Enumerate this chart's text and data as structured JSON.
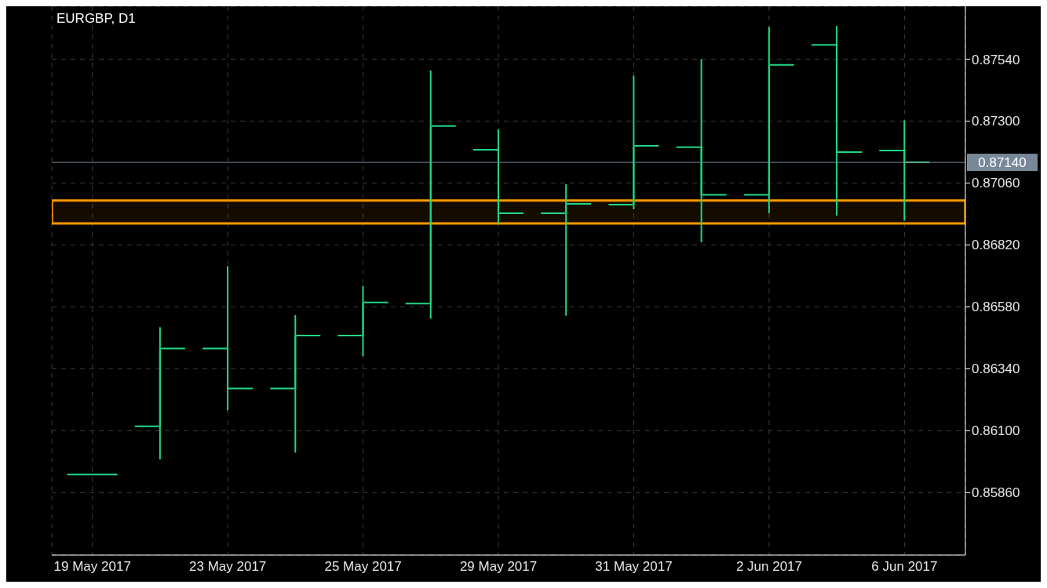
{
  "chart_data": {
    "type": "candlestick",
    "title": "EURGBP, D1",
    "categories": [
      "19 May 2017",
      null,
      "23 May 2017",
      null,
      "25 May 2017",
      null,
      "29 May 2017",
      null,
      "31 May 2017",
      null,
      "2 Jun 2017",
      null,
      "6 Jun 2017"
    ],
    "ohlc": [
      [
        0.8593,
        0.8593,
        0.8593,
        0.8593
      ],
      [
        0.86117,
        0.86501,
        0.85989,
        0.86419
      ],
      [
        0.86419,
        0.86738,
        0.86179,
        0.86264
      ],
      [
        0.86264,
        0.86548,
        0.86015,
        0.86469
      ],
      [
        0.86469,
        0.86661,
        0.86389,
        0.86597
      ],
      [
        0.86593,
        0.87496,
        0.86534,
        0.87281
      ],
      [
        0.87189,
        0.87268,
        0.86903,
        0.86943
      ],
      [
        0.86943,
        0.87055,
        0.86546,
        0.86979
      ],
      [
        0.86976,
        0.87476,
        0.86958,
        0.87204
      ],
      [
        0.87199,
        0.8754,
        0.8683,
        0.87014
      ],
      [
        0.87014,
        0.87665,
        0.86943,
        0.87518
      ],
      [
        0.87595,
        0.87669,
        0.86934,
        0.8718
      ],
      [
        0.87186,
        0.87303,
        0.86914,
        0.8714
      ]
    ],
    "color": "#1fd882",
    "ylim": [
      0.85618,
      0.87745
    ],
    "yticks": [
      {
        "value": 0.8586,
        "label": "0.85860"
      },
      {
        "value": 0.861,
        "label": "0.86100"
      },
      {
        "value": 0.8634,
        "label": "0.86340"
      },
      {
        "value": 0.8658,
        "label": "0.86580"
      },
      {
        "value": 0.8682,
        "label": "0.86820"
      },
      {
        "value": 0.8706,
        "label": "0.87060"
      },
      {
        "value": 0.873,
        "label": "0.87300"
      },
      {
        "value": 0.8754,
        "label": "0.87540"
      }
    ],
    "grid": true,
    "ref_lines": [
      {
        "axis": "y",
        "value": 0.8714,
        "label": "0.87140",
        "color": "#778899"
      }
    ],
    "bands": [
      {
        "axis": "y",
        "from": 0.86903,
        "to": 0.86992,
        "color": "#ff9800"
      }
    ]
  }
}
